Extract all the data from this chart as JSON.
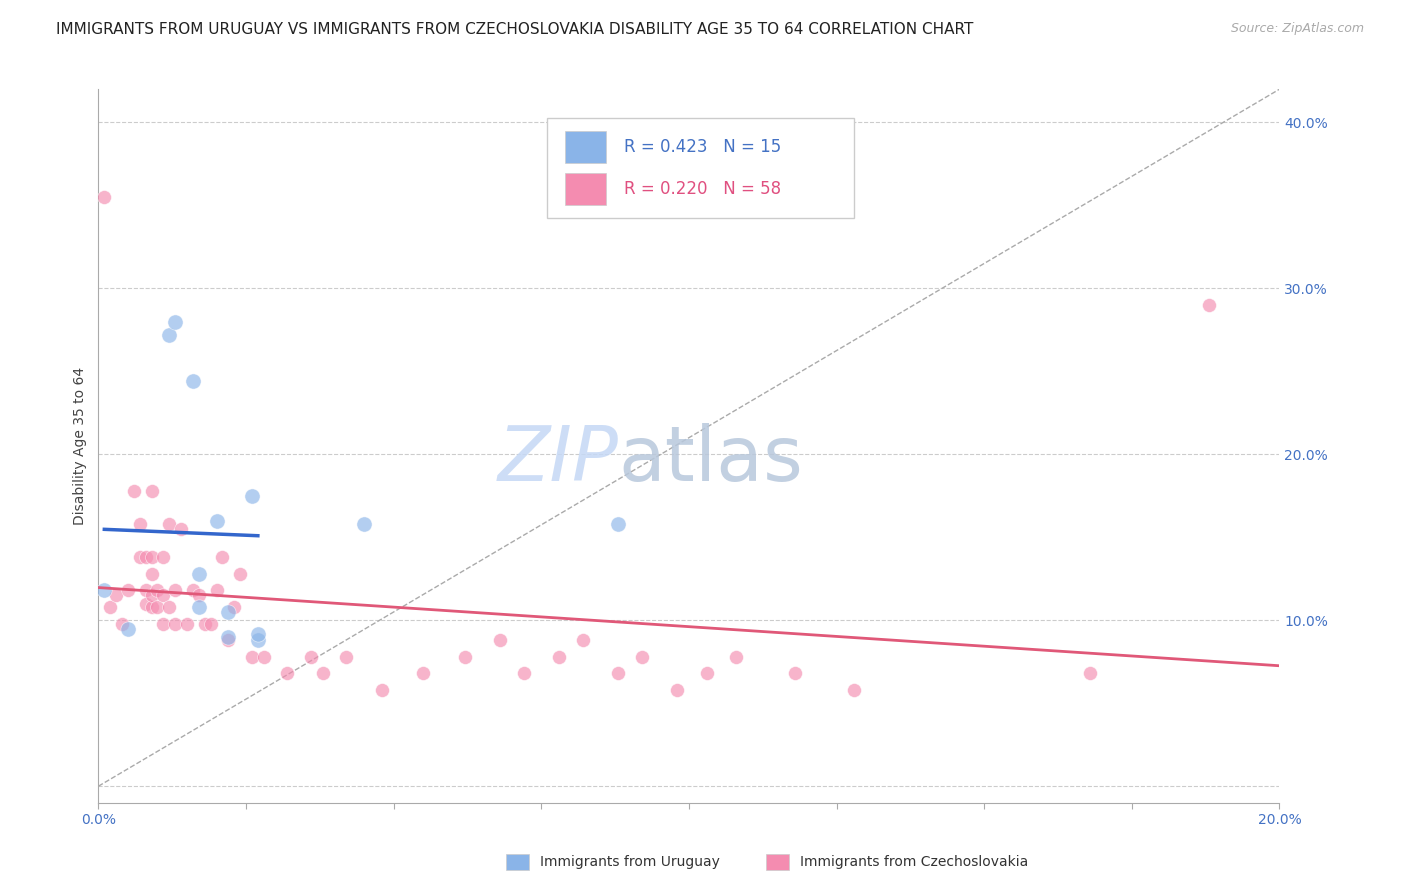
{
  "title": "IMMIGRANTS FROM URUGUAY VS IMMIGRANTS FROM CZECHOSLOVAKIA DISABILITY AGE 35 TO 64 CORRELATION CHART",
  "source": "Source: ZipAtlas.com",
  "ylabel": "Disability Age 35 to 64",
  "xlim": [
    0.0,
    0.2
  ],
  "ylim": [
    -0.01,
    0.42
  ],
  "x_ticks": [
    0.0,
    0.025,
    0.05,
    0.075,
    0.1,
    0.125,
    0.15,
    0.175,
    0.2
  ],
  "x_tick_labels": [
    "0.0%",
    "",
    "",
    "",
    "",
    "",
    "",
    "",
    "20.0%"
  ],
  "y_ticks": [
    0.0,
    0.1,
    0.2,
    0.3,
    0.4
  ],
  "y_tick_labels": [
    "",
    "10.0%",
    "20.0%",
    "30.0%",
    "40.0%"
  ],
  "color_uruguay": "#8ab4e8",
  "color_czechoslovakia": "#f48cb0",
  "uruguay_R": 0.423,
  "uruguay_N": 15,
  "czechoslovakia_R": 0.22,
  "czechoslovakia_N": 58,
  "watermark_zip": "ZIP",
  "watermark_atlas": "atlas",
  "watermark_color_zip": "#c5d8f0",
  "watermark_color_atlas": "#c0cce0",
  "grid_color": "#cccccc",
  "grid_style": "--",
  "uruguay_x": [
    0.001,
    0.005,
    0.012,
    0.013,
    0.016,
    0.017,
    0.017,
    0.02,
    0.022,
    0.022,
    0.026,
    0.027,
    0.027,
    0.045,
    0.088
  ],
  "uruguay_y": [
    0.118,
    0.095,
    0.272,
    0.28,
    0.244,
    0.108,
    0.128,
    0.16,
    0.09,
    0.105,
    0.175,
    0.088,
    0.092,
    0.158,
    0.158
  ],
  "czechoslovakia_x": [
    0.001,
    0.002,
    0.003,
    0.004,
    0.005,
    0.006,
    0.007,
    0.007,
    0.008,
    0.008,
    0.008,
    0.009,
    0.009,
    0.009,
    0.009,
    0.009,
    0.01,
    0.01,
    0.011,
    0.011,
    0.011,
    0.012,
    0.012,
    0.013,
    0.013,
    0.014,
    0.015,
    0.016,
    0.017,
    0.018,
    0.019,
    0.02,
    0.021,
    0.022,
    0.023,
    0.024,
    0.026,
    0.028,
    0.032,
    0.036,
    0.038,
    0.042,
    0.048,
    0.055,
    0.062,
    0.068,
    0.072,
    0.078,
    0.082,
    0.088,
    0.092,
    0.098,
    0.103,
    0.108,
    0.118,
    0.128,
    0.168,
    0.188
  ],
  "czechoslovakia_y": [
    0.355,
    0.108,
    0.115,
    0.098,
    0.118,
    0.178,
    0.138,
    0.158,
    0.11,
    0.118,
    0.138,
    0.108,
    0.115,
    0.128,
    0.138,
    0.178,
    0.108,
    0.118,
    0.098,
    0.115,
    0.138,
    0.108,
    0.158,
    0.098,
    0.118,
    0.155,
    0.098,
    0.118,
    0.115,
    0.098,
    0.098,
    0.118,
    0.138,
    0.088,
    0.108,
    0.128,
    0.078,
    0.078,
    0.068,
    0.078,
    0.068,
    0.078,
    0.058,
    0.068,
    0.078,
    0.088,
    0.068,
    0.078,
    0.088,
    0.068,
    0.078,
    0.058,
    0.068,
    0.078,
    0.068,
    0.058,
    0.068,
    0.29
  ],
  "background_color": "#ffffff",
  "title_fontsize": 11,
  "axis_label_fontsize": 10,
  "tick_fontsize": 10,
  "tick_color": "#4472c4",
  "scatter_size_uru": 120,
  "scatter_size_cze": 100,
  "scatter_alpha": 0.65,
  "legend_fontsize": 12,
  "legend_color_uru": "#4472c4",
  "legend_color_cze": "#e05080",
  "trend_color_uru": "#3366cc",
  "trend_color_cze": "#e05878"
}
